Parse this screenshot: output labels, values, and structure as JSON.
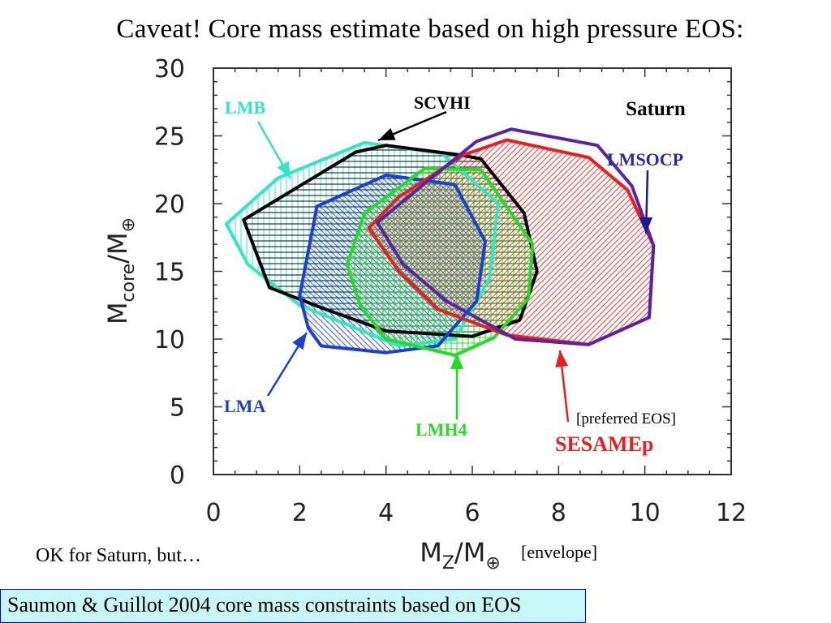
{
  "slide": {
    "title": "Caveat! Core mass estimate based on high pressure EOS:",
    "note": "OK for Saturn, but…",
    "caption": "Saumon & Guillot 2004 core mass constraints based on EOS"
  },
  "chart_data": {
    "type": "area",
    "title": "Saturn",
    "xlabel": "M_Z/M_⊕",
    "ylabel": "M_core/M_⊕",
    "xlim": [
      0,
      12
    ],
    "ylim": [
      0,
      30
    ],
    "xticks": [
      "0",
      "2",
      "4",
      "6",
      "8",
      "10",
      "12"
    ],
    "yticks": [
      "0",
      "5",
      "10",
      "15",
      "20",
      "25",
      "30"
    ],
    "grid": false,
    "annotations": {
      "preferred": "[preferred EOS]",
      "envelope": "[envelope]"
    },
    "series": [
      {
        "name": "LMB",
        "color": "#30e8c0",
        "hatch": "vertical",
        "x": [
          0.3,
          1.5,
          3.5,
          5.3,
          6.6,
          6.4,
          5.6,
          4.3,
          2.0,
          0.8
        ],
        "y": [
          18.5,
          21.9,
          24.5,
          23.7,
          20.0,
          14.5,
          10.0,
          9.5,
          12.5,
          15.5
        ]
      },
      {
        "name": "SCVHI",
        "color": "#000000",
        "hatch": "horizontal",
        "x": [
          0.7,
          3.3,
          4.0,
          5.7,
          6.2,
          7.2,
          7.5,
          7.1,
          6.0,
          4.0,
          2.6,
          1.3
        ],
        "y": [
          18.8,
          23.8,
          24.3,
          23.6,
          23.3,
          19.3,
          15.0,
          11.4,
          10.2,
          10.6,
          12.2,
          13.8
        ]
      },
      {
        "name": "LMA",
        "color": "#1b3fd4",
        "hatch": "diagonal-down",
        "x": [
          2.4,
          4.0,
          5.6,
          6.3,
          6.1,
          5.2,
          4.0,
          2.5,
          2.2,
          2.0
        ],
        "y": [
          19.8,
          22.1,
          21.4,
          17.2,
          12.8,
          9.5,
          9.0,
          9.5,
          10.8,
          13.2
        ]
      },
      {
        "name": "LMH4",
        "color": "#22dd22",
        "hatch": "crosshatch",
        "x": [
          3.5,
          4.9,
          6.2,
          7.4,
          7.3,
          6.5,
          5.6,
          4.0,
          3.4,
          3.1
        ],
        "y": [
          19.3,
          22.6,
          22.5,
          17.0,
          13.0,
          10.1,
          8.8,
          10.0,
          12.5,
          15.5
        ]
      },
      {
        "name": "SESAMEp",
        "color": "#ee1c1c",
        "hatch": "diagonal-up",
        "x": [
          3.6,
          4.3,
          5.8,
          6.8,
          8.7,
          9.6,
          10.2,
          10.1,
          8.7,
          6.8,
          5.2,
          4.3
        ],
        "y": [
          18.2,
          20.5,
          23.6,
          24.7,
          23.4,
          21.0,
          16.9,
          11.6,
          9.6,
          10.3,
          12.2,
          15.0
        ]
      },
      {
        "name": "LMSOCP",
        "color": "#5a22a8",
        "hatch": "none",
        "x": [
          3.8,
          4.9,
          6.1,
          6.9,
          8.9,
          9.7,
          10.2,
          10.1,
          8.7,
          7.0,
          5.4,
          4.4
        ],
        "y": [
          18.6,
          21.5,
          24.6,
          25.5,
          24.3,
          21.3,
          16.9,
          11.6,
          9.6,
          10.0,
          12.8,
          15.5
        ]
      }
    ]
  }
}
